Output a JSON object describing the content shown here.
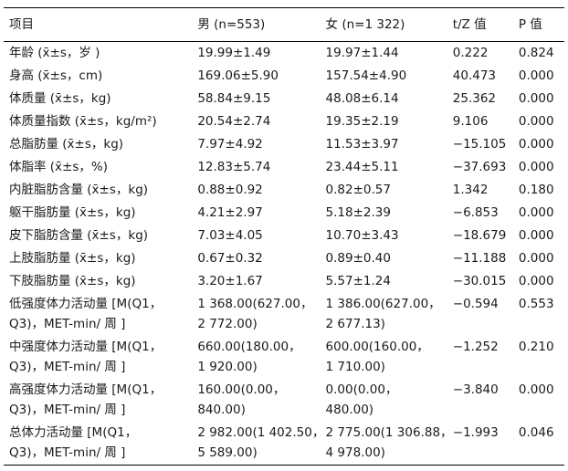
{
  "headers": {
    "item": "项目",
    "male": "男 (n=553)",
    "female": "女 (n=1 322)",
    "tz": "t/Z 值",
    "p": "P 值"
  },
  "rows": [
    {
      "item": [
        "年龄 (x̄±s，岁 )"
      ],
      "male": [
        "19.99±1.49"
      ],
      "female": [
        "19.97±1.44"
      ],
      "tz": "0.222",
      "p": "0.824"
    },
    {
      "item": [
        "身高 (x̄±s，cm)"
      ],
      "male": [
        "169.06±5.90"
      ],
      "female": [
        "157.54±4.90"
      ],
      "tz": "40.473",
      "p": "0.000"
    },
    {
      "item": [
        "体质量 (x̄±s，kg)"
      ],
      "male": [
        "58.84±9.15"
      ],
      "female": [
        "48.08±6.14"
      ],
      "tz": "25.362",
      "p": "0.000"
    },
    {
      "item": [
        "体质量指数 (x̄±s，kg/m²)"
      ],
      "male": [
        "20.54±2.74"
      ],
      "female": [
        "19.35±2.19"
      ],
      "tz": "9.106",
      "p": "0.000"
    },
    {
      "item": [
        "总脂肪量 (x̄±s，kg)"
      ],
      "male": [
        "7.97±4.92"
      ],
      "female": [
        "11.53±3.97"
      ],
      "tz": "−15.105",
      "p": "0.000"
    },
    {
      "item": [
        "体脂率 (x̄±s，%)"
      ],
      "male": [
        "12.83±5.74"
      ],
      "female": [
        "23.44±5.11"
      ],
      "tz": "−37.693",
      "p": "0.000"
    },
    {
      "item": [
        "内脏脂肪含量 (x̄±s，kg)"
      ],
      "male": [
        "0.88±0.92"
      ],
      "female": [
        "0.82±0.57"
      ],
      "tz": "1.342",
      "p": "0.180"
    },
    {
      "item": [
        "躯干脂肪量 (x̄±s，kg)"
      ],
      "male": [
        "4.21±2.97"
      ],
      "female": [
        "5.18±2.39"
      ],
      "tz": "−6.853",
      "p": "0.000"
    },
    {
      "item": [
        "皮下脂肪含量 (x̄±s，kg)"
      ],
      "male": [
        "7.03±4.05"
      ],
      "female": [
        "10.70±3.43"
      ],
      "tz": "−18.679",
      "p": "0.000"
    },
    {
      "item": [
        "上肢脂肪量 (x̄±s，kg)"
      ],
      "male": [
        "0.67±0.32"
      ],
      "female": [
        "0.89±0.40"
      ],
      "tz": "−11.188",
      "p": "0.000"
    },
    {
      "item": [
        "下肢脂肪量 (x̄±s，kg)"
      ],
      "male": [
        "3.20±1.67"
      ],
      "female": [
        "5.57±1.24"
      ],
      "tz": "−30.015",
      "p": "0.000"
    },
    {
      "item": [
        "低强度体力活动量 [M(Q1，",
        "Q3)，MET-min/ 周 ]"
      ],
      "male": [
        "1 368.00(627.00，",
        "2 772.00)"
      ],
      "female": [
        "1 386.00(627.00，",
        "2 677.13)"
      ],
      "tz": "−0.594",
      "p": "0.553"
    },
    {
      "item": [
        "中强度体力活动量 [M(Q1，",
        "Q3)，MET-min/ 周 ]"
      ],
      "male": [
        "660.00(180.00，",
        "1 920.00)"
      ],
      "female": [
        "600.00(160.00，",
        "1 710.00)"
      ],
      "tz": "−1.252",
      "p": "0.210"
    },
    {
      "item": [
        "高强度体力活动量 [M(Q1，",
        "Q3)，MET-min/ 周 ]"
      ],
      "male": [
        "160.00(0.00，",
        "840.00)"
      ],
      "female": [
        "0.00(0.00，",
        "480.00)"
      ],
      "tz": "−3.840",
      "p": "0.000"
    },
    {
      "item": [
        "总体力活动量 [M(Q1，",
        "Q3)，MET-min/ 周 ]"
      ],
      "male": [
        "2 982.00(1 402.50，",
        "5 589.00)"
      ],
      "female": [
        "2 775.00(1 306.88，",
        "4 978.00)"
      ],
      "tz": "−1.993",
      "p": "0.046"
    }
  ]
}
